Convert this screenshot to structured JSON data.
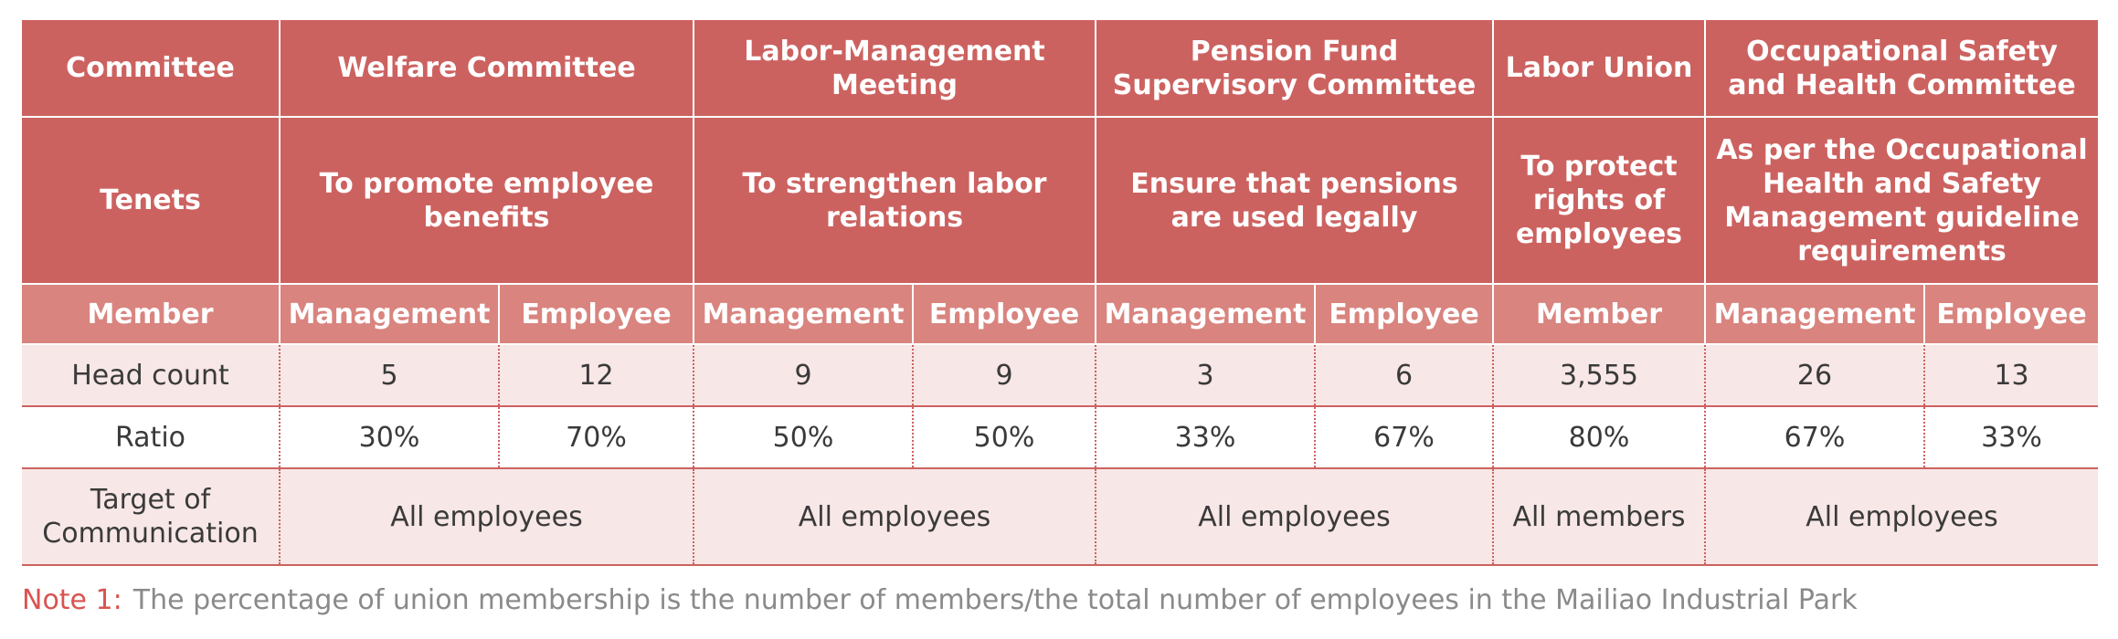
{
  "colors": {
    "header_bg": "#cc6260",
    "member_row_bg": "#d9847f",
    "shaded_row_bg": "#f7e7e6",
    "note_label": "#d9534f",
    "note_text": "#8a8a8a"
  },
  "table": {
    "committee_label": "Committee",
    "committees": {
      "welfare": "Welfare Committee",
      "labor_management": "Labor-Management Meeting",
      "pension": "Pension Fund Supervisory Committee",
      "union": "Labor Union",
      "osh": "Occupational Safety and Health Committee"
    },
    "tenets_label": "Tenets",
    "tenets": {
      "welfare": "To promote employee benefits",
      "labor_management": "To strengthen labor relations",
      "pension": "Ensure that pensions are used legally",
      "union": "To protect rights of employees",
      "osh": "As per the Occupational Health and Safety Management guideline requirements"
    },
    "member_label": "Member",
    "members": [
      "Management",
      "Employee",
      "Management",
      "Employee",
      "Management",
      "Employee",
      "Member",
      "Management",
      "Employee"
    ],
    "headcount_label": "Head count",
    "headcounts": [
      "5",
      "12",
      "9",
      "9",
      "3",
      "6",
      "3,555",
      "26",
      "13"
    ],
    "ratio_label": "Ratio",
    "ratios": [
      "30%",
      "70%",
      "50%",
      "50%",
      "33%",
      "67%",
      "80%",
      "67%",
      "33%"
    ],
    "target_label": "Target of Communication",
    "targets": {
      "welfare": "All employees",
      "labor_management": "All employees",
      "pension": "All employees",
      "union": "All members",
      "osh": "All employees"
    }
  },
  "note": {
    "label": "Note 1:",
    "text": "The percentage of union membership is the number of members/the total number of employees in the Mailiao Industrial Park"
  }
}
